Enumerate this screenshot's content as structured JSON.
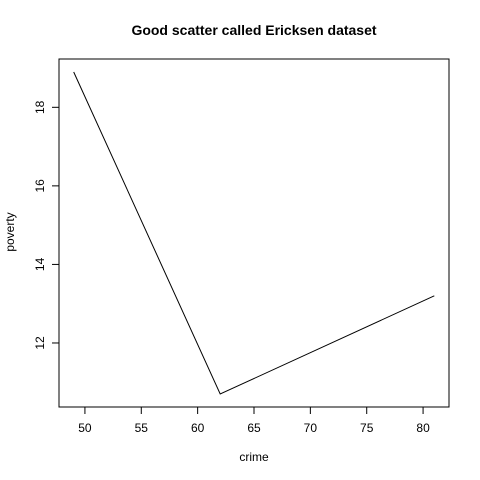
{
  "chart_data": {
    "type": "line",
    "title": "Good scatter called Ericksen dataset",
    "xlabel": "crime",
    "ylabel": "poverty",
    "x": [
      49,
      62,
      81
    ],
    "y": [
      18.9,
      10.7,
      13.2
    ],
    "xlim": [
      47.7,
      82.3
    ],
    "ylim": [
      10.37,
      19.23
    ],
    "xticks": [
      50,
      55,
      60,
      65,
      70,
      75,
      80
    ],
    "yticks": [
      12,
      14,
      16,
      18
    ],
    "grid": false,
    "legend": "none"
  }
}
